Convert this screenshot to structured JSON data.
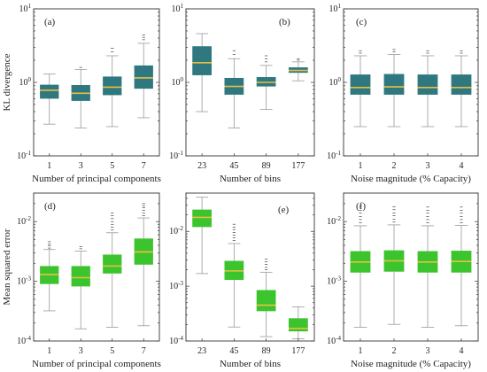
{
  "colors": {
    "teal": "#2f7880",
    "green": "#3cc42e",
    "median": "#e8c040",
    "whisker": "#9a9a9a"
  },
  "chart_data": [
    {
      "type": "box",
      "panel": "(a)",
      "ylabel": "KL divergence",
      "xlabel": "Number of principal components",
      "scale": "log",
      "ylim": [
        0.1,
        10
      ],
      "ytick_labels": [
        "10^-1",
        "10^0",
        "10^1"
      ],
      "color": "teal",
      "categories": [
        "1",
        "3",
        "5",
        "7"
      ],
      "boxes": [
        {
          "whislo": 0.27,
          "q1": 0.6,
          "med": 0.78,
          "q3": 0.93,
          "whishi": 1.3,
          "fliers": []
        },
        {
          "whislo": 0.24,
          "q1": 0.56,
          "med": 0.71,
          "q3": 0.92,
          "whishi": 1.5,
          "fliers": [
            1.6
          ]
        },
        {
          "whislo": 0.25,
          "q1": 0.67,
          "med": 0.86,
          "q3": 1.2,
          "whishi": 2.3,
          "fliers": [
            2.6,
            2.9
          ]
        },
        {
          "whislo": 0.33,
          "q1": 0.82,
          "med": 1.15,
          "q3": 1.7,
          "whishi": 3.4,
          "fliers": [
            3.8,
            4.1,
            4.4
          ]
        }
      ]
    },
    {
      "type": "box",
      "panel": "(b)",
      "ylabel": "",
      "xlabel": "Number of bins",
      "scale": "log",
      "ylim": [
        0.1,
        10
      ],
      "ytick_labels": [
        "10^-1",
        "10^0",
        "10^1"
      ],
      "color": "teal",
      "categories": [
        "23",
        "45",
        "89",
        "177"
      ],
      "boxes": [
        {
          "whislo": 0.4,
          "q1": 1.25,
          "med": 1.85,
          "q3": 3.1,
          "whishi": 4.6,
          "fliers": []
        },
        {
          "whislo": 0.24,
          "q1": 0.68,
          "med": 0.88,
          "q3": 1.15,
          "whishi": 2.1,
          "fliers": [
            2.4,
            2.7
          ]
        },
        {
          "whislo": 0.43,
          "q1": 0.88,
          "med": 1.0,
          "q3": 1.18,
          "whishi": 1.7,
          "fliers": [
            1.9,
            2.1,
            2.3
          ]
        },
        {
          "whislo": 1.05,
          "q1": 1.35,
          "med": 1.45,
          "q3": 1.6,
          "whishi": 1.9,
          "fliers": [
            2.0,
            2.1
          ]
        }
      ]
    },
    {
      "type": "box",
      "panel": "(c)",
      "ylabel": "",
      "xlabel": "Noise magnitude (% Capacity)",
      "scale": "log",
      "ylim": [
        0.1,
        10
      ],
      "ytick_labels": [
        "10^-1",
        "10^0",
        "10^1"
      ],
      "color": "teal",
      "categories": [
        "1",
        "2",
        "3",
        "4"
      ],
      "boxes": [
        {
          "whislo": 0.25,
          "q1": 0.68,
          "med": 0.85,
          "q3": 1.28,
          "whishi": 2.3,
          "fliers": [
            2.5,
            2.7
          ]
        },
        {
          "whislo": 0.25,
          "q1": 0.68,
          "med": 0.87,
          "q3": 1.3,
          "whishi": 2.4,
          "fliers": [
            2.6,
            2.8
          ]
        },
        {
          "whislo": 0.25,
          "q1": 0.68,
          "med": 0.85,
          "q3": 1.28,
          "whishi": 2.3,
          "fliers": [
            2.5,
            2.7
          ]
        },
        {
          "whislo": 0.25,
          "q1": 0.68,
          "med": 0.85,
          "q3": 1.28,
          "whishi": 2.3,
          "fliers": [
            2.5,
            2.7
          ]
        }
      ]
    },
    {
      "type": "box",
      "panel": "(d)",
      "ylabel": "Mean squared error",
      "xlabel": "Number of principal components",
      "scale": "log",
      "ylim": [
        0.0001,
        0.03
      ],
      "ytick_labels": [
        "10^-4",
        "10^-3",
        "10^-2"
      ],
      "color": "green",
      "categories": [
        "1",
        "3",
        "5",
        "7"
      ],
      "boxes": [
        {
          "whislo": 0.00032,
          "q1": 0.0009,
          "med": 0.0013,
          "q3": 0.0018,
          "whishi": 0.0034,
          "fliers": [
            0.0036,
            0.0039,
            0.0042,
            0.0046
          ]
        },
        {
          "whislo": 0.00016,
          "q1": 0.00082,
          "med": 0.00115,
          "q3": 0.0018,
          "whishi": 0.0032,
          "fliers": [
            0.0035,
            0.0038
          ]
        },
        {
          "whislo": 0.00017,
          "q1": 0.00135,
          "med": 0.0018,
          "q3": 0.0028,
          "whishi": 0.0065,
          "fliers": [
            0.0072,
            0.008,
            0.009,
            0.01,
            0.0112,
            0.0125,
            0.014
          ]
        },
        {
          "whislo": 0.00018,
          "q1": 0.0019,
          "med": 0.0031,
          "q3": 0.0052,
          "whishi": 0.0115,
          "fliers": [
            0.0125,
            0.014,
            0.0155,
            0.017,
            0.0185,
            0.02
          ]
        }
      ]
    },
    {
      "type": "box",
      "panel": "(e)",
      "ylabel": "",
      "xlabel": "Number of bins",
      "scale": "log",
      "ylim": [
        0.0001,
        0.05
      ],
      "ytick_labels": [
        "10^-4",
        "10^-3",
        "10^-2"
      ],
      "color": "green",
      "categories": [
        "23",
        "45",
        "89",
        "177"
      ],
      "boxes": [
        {
          "whislo": 0.0017,
          "q1": 0.012,
          "med": 0.018,
          "q3": 0.025,
          "whishi": 0.042,
          "fliers": []
        },
        {
          "whislo": 0.00018,
          "q1": 0.0013,
          "med": 0.0019,
          "q3": 0.0029,
          "whishi": 0.006,
          "fliers": [
            0.0068,
            0.0076,
            0.0085,
            0.0095,
            0.0108,
            0.012,
            0.0135
          ]
        },
        {
          "whislo": 0.00012,
          "q1": 0.00035,
          "med": 0.00045,
          "q3": 0.00085,
          "whishi": 0.0018,
          "fliers": [
            0.002,
            0.0022,
            0.0025,
            0.0028,
            0.0031
          ]
        },
        {
          "whislo": 0.00011,
          "q1": 0.00015,
          "med": 0.00017,
          "q3": 0.00026,
          "whishi": 0.00042,
          "fliers": []
        }
      ]
    },
    {
      "type": "box",
      "panel": "(f)",
      "ylabel": "",
      "xlabel": "Noise magnitude (% Capacity)",
      "scale": "log",
      "ylim": [
        0.0001,
        0.03
      ],
      "ytick_labels": [
        "10^-4",
        "10^-3",
        "10^-2"
      ],
      "color": "green",
      "categories": [
        "1",
        "2",
        "3",
        "4"
      ],
      "boxes": [
        {
          "whislo": 0.00017,
          "q1": 0.0014,
          "med": 0.0021,
          "q3": 0.0032,
          "whishi": 0.0085,
          "fliers": [
            0.0095,
            0.0108,
            0.0122,
            0.0138,
            0.0155,
            0.0175
          ]
        },
        {
          "whislo": 0.00019,
          "q1": 0.00145,
          "med": 0.0022,
          "q3": 0.0033,
          "whishi": 0.0088,
          "fliers": [
            0.0098,
            0.011,
            0.0125,
            0.014,
            0.0158,
            0.0178
          ]
        },
        {
          "whislo": 0.00017,
          "q1": 0.0014,
          "med": 0.0021,
          "q3": 0.0032,
          "whishi": 0.0085,
          "fliers": [
            0.0095,
            0.0108,
            0.0122,
            0.0138,
            0.0155,
            0.0175
          ]
        },
        {
          "whislo": 0.00018,
          "q1": 0.0014,
          "med": 0.00215,
          "q3": 0.00325,
          "whishi": 0.0086,
          "fliers": [
            0.0096,
            0.0108,
            0.0122,
            0.0138,
            0.0155,
            0.0175
          ]
        }
      ]
    }
  ]
}
